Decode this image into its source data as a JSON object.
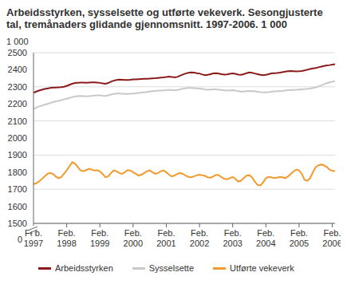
{
  "chart_data": {
    "type": "line",
    "title": "Arbeidsstyrken, sysselsette og utførte vekeverk. Sesongjusterte tal, tremånaders glidande gjennomsnitt. 1997-2006.  1 000",
    "y_label": "1 000",
    "y_break": {
      "value": 0,
      "label": "0"
    },
    "ylim": [
      1500,
      2500
    ],
    "yticks": [
      1500,
      1600,
      1700,
      1800,
      1900,
      2000,
      2100,
      2200,
      2300,
      2400,
      2500
    ],
    "grid": true,
    "legend": "bottom",
    "categories": [
      "Feb. 1997",
      null,
      null,
      null,
      null,
      null,
      null,
      null,
      null,
      null,
      null,
      null,
      "Feb. 1998",
      null,
      null,
      null,
      null,
      null,
      null,
      null,
      null,
      null,
      null,
      null,
      "Feb. 1999",
      null,
      null,
      null,
      null,
      null,
      null,
      null,
      null,
      null,
      null,
      null,
      "Feb. 2000",
      null,
      null,
      null,
      null,
      null,
      null,
      null,
      null,
      null,
      null,
      null,
      "Feb. 2001",
      null,
      null,
      null,
      null,
      null,
      null,
      null,
      null,
      null,
      null,
      null,
      "Feb. 2002",
      null,
      null,
      null,
      null,
      null,
      null,
      null,
      null,
      null,
      null,
      null,
      "Feb. 2003",
      null,
      null,
      null,
      null,
      null,
      null,
      null,
      null,
      null,
      null,
      null,
      "Feb. 2004",
      null,
      null,
      null,
      null,
      null,
      null,
      null,
      null,
      null,
      null,
      null,
      "Feb. 2005",
      null,
      null,
      null,
      null,
      null,
      null,
      null,
      null,
      null,
      null,
      null,
      "Feb. 2006",
      null
    ],
    "series": [
      {
        "name": "Arbeidsstyrken",
        "color": "#8b1a1a",
        "values": [
          2265,
          2272,
          2278,
          2283,
          2287,
          2290,
          2293,
          2295,
          2296,
          2297,
          2298,
          2300,
          2305,
          2312,
          2318,
          2322,
          2324,
          2325,
          2325,
          2324,
          2325,
          2326,
          2326,
          2325,
          2323,
          2320,
          2318,
          2322,
          2330,
          2336,
          2340,
          2342,
          2341,
          2340,
          2340,
          2341,
          2343,
          2344,
          2345,
          2346,
          2347,
          2347,
          2348,
          2349,
          2350,
          2352,
          2354,
          2355,
          2357,
          2360,
          2358,
          2355,
          2358,
          2365,
          2372,
          2378,
          2382,
          2384,
          2383,
          2380,
          2378,
          2372,
          2368,
          2370,
          2374,
          2378,
          2380,
          2377,
          2374,
          2372,
          2373,
          2376,
          2378,
          2376,
          2372,
          2370,
          2374,
          2380,
          2384,
          2382,
          2378,
          2374,
          2370,
          2368,
          2370,
          2374,
          2378,
          2380,
          2381,
          2383,
          2386,
          2389,
          2391,
          2392,
          2391,
          2390,
          2391,
          2393,
          2396,
          2400,
          2404,
          2408,
          2410,
          2414,
          2418,
          2422,
          2425,
          2427,
          2430,
          2432
        ]
      },
      {
        "name": "Sysselsette",
        "color": "#c8c8c8",
        "values": [
          2170,
          2178,
          2185,
          2190,
          2195,
          2200,
          2205,
          2210,
          2214,
          2218,
          2222,
          2226,
          2230,
          2235,
          2240,
          2243,
          2245,
          2246,
          2245,
          2244,
          2245,
          2247,
          2249,
          2250,
          2250,
          2248,
          2247,
          2250,
          2255,
          2258,
          2260,
          2260,
          2259,
          2258,
          2258,
          2259,
          2260,
          2262,
          2264,
          2266,
          2268,
          2270,
          2272,
          2274,
          2276,
          2277,
          2278,
          2279,
          2280,
          2282,
          2281,
          2279,
          2281,
          2285,
          2289,
          2292,
          2293,
          2293,
          2292,
          2291,
          2290,
          2287,
          2284,
          2283,
          2284,
          2285,
          2285,
          2283,
          2281,
          2279,
          2278,
          2279,
          2280,
          2278,
          2275,
          2272,
          2272,
          2274,
          2276,
          2275,
          2273,
          2271,
          2269,
          2268,
          2268,
          2269,
          2271,
          2273,
          2274,
          2275,
          2276,
          2278,
          2280,
          2281,
          2282,
          2283,
          2284,
          2285,
          2286,
          2288,
          2290,
          2293,
          2297,
          2302,
          2308,
          2315,
          2321,
          2326,
          2330,
          2333
        ]
      },
      {
        "name": "Utførte vekeverk",
        "color": "#f29a2e",
        "values": [
          1730,
          1735,
          1745,
          1760,
          1775,
          1790,
          1795,
          1790,
          1775,
          1765,
          1770,
          1790,
          1810,
          1835,
          1858,
          1850,
          1830,
          1810,
          1805,
          1812,
          1820,
          1815,
          1810,
          1812,
          1805,
          1790,
          1770,
          1775,
          1795,
          1810,
          1805,
          1795,
          1790,
          1800,
          1812,
          1810,
          1800,
          1790,
          1780,
          1785,
          1795,
          1805,
          1810,
          1800,
          1790,
          1795,
          1805,
          1810,
          1800,
          1785,
          1775,
          1780,
          1790,
          1795,
          1790,
          1780,
          1772,
          1770,
          1775,
          1782,
          1785,
          1782,
          1778,
          1770,
          1768,
          1775,
          1785,
          1782,
          1770,
          1760,
          1758,
          1765,
          1772,
          1760,
          1745,
          1750,
          1765,
          1780,
          1782,
          1770,
          1745,
          1725,
          1722,
          1740,
          1765,
          1772,
          1770,
          1765,
          1768,
          1772,
          1770,
          1765,
          1775,
          1790,
          1805,
          1815,
          1810,
          1790,
          1755,
          1750,
          1765,
          1800,
          1830,
          1840,
          1845,
          1840,
          1830,
          1815,
          1808,
          1805
        ]
      }
    ]
  }
}
